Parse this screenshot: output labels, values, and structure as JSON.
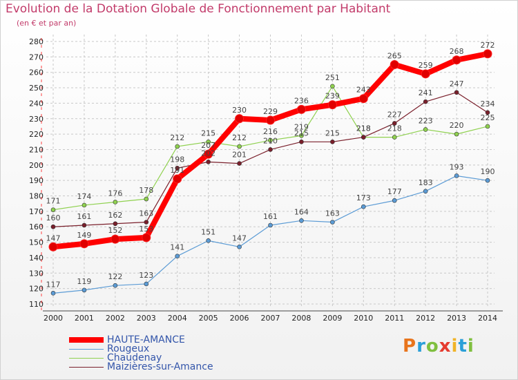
{
  "title": "Evolution de la Dotation Globale de Fonctionnement par Habitant",
  "subtitle": "(en € et par an)",
  "logo": {
    "text": "Proxiti",
    "colors": [
      "#e8741c",
      "#2a9fd8",
      "#7fbf3f",
      "#e53b2f",
      "#f0b428",
      "#2a9fd8",
      "#7fbf3f"
    ]
  },
  "chart_data": {
    "type": "line",
    "title": "Evolution de la Dotation Globale de Fonctionnement par Habitant",
    "subtitle": "(en € et par an)",
    "xlabel": "",
    "ylabel": "",
    "x": [
      "2000",
      "2001",
      "2002",
      "2003",
      "2004",
      "2005",
      "2006",
      "2007",
      "2008",
      "2009",
      "2010",
      "2011",
      "2012",
      "2013",
      "2014"
    ],
    "ylim": [
      110,
      280
    ],
    "yticks": [
      110,
      120,
      130,
      140,
      150,
      160,
      170,
      180,
      190,
      200,
      210,
      220,
      230,
      240,
      250,
      260,
      270,
      280
    ],
    "grid": true,
    "legend_position": "bottom-left",
    "series": [
      {
        "name": "Rougeux",
        "color": "#5b9bd5",
        "values": [
          117,
          119,
          122,
          123,
          141,
          151,
          147,
          161,
          164,
          163,
          173,
          177,
          183,
          193,
          190
        ]
      },
      {
        "name": "Chaudenay",
        "color": "#8fd14f",
        "values": [
          171,
          174,
          176,
          178,
          212,
          215,
          212,
          216,
          219,
          251,
          218,
          218,
          223,
          220,
          225
        ]
      },
      {
        "name": "Maizières-sur-Amance",
        "color": "#7a1f2b",
        "values": [
          160,
          161,
          162,
          163,
          198,
          202,
          201,
          210,
          215,
          215,
          218,
          227,
          241,
          247,
          234
        ]
      },
      {
        "name": "HAUTE-AMANCE",
        "color": "#ff0000",
        "values": [
          147,
          149,
          152,
          153,
          191,
          207,
          230,
          229,
          236,
          239,
          243,
          265,
          259,
          268,
          272
        ]
      }
    ],
    "legend_order": [
      "HAUTE-AMANCE",
      "Rougeux",
      "Chaudenay",
      "Maizières-sur-Amance"
    ]
  }
}
